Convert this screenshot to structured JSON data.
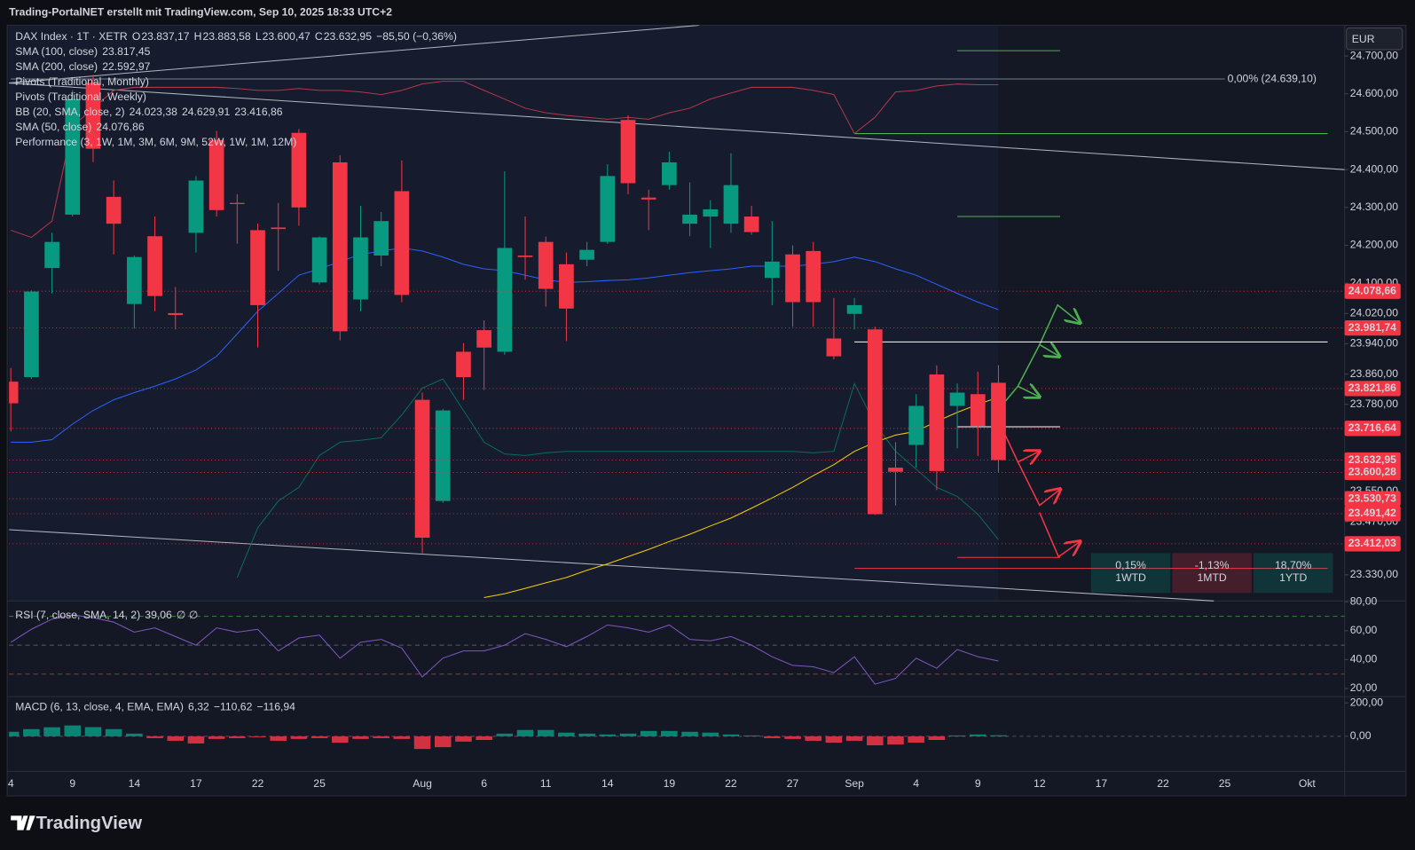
{
  "chart_data": {
    "type": "candlestick",
    "header": "Trading-PortalNET erstellt mit TradingView.com, Sep 10, 2025 18:33 UTC+2",
    "symbol": "DAX Index · 1T · XETR",
    "ohlc_legend": [
      [
        "O",
        "23.837,17"
      ],
      [
        "H",
        "23.883,58"
      ],
      [
        "L",
        "23.600,47"
      ],
      [
        "C",
        "23.632,95"
      ]
    ],
    "change": "−85,50 (−0,36%)",
    "studies": [
      {
        "name": "SMA (100, close)",
        "values": [
          "23.817,45"
        ],
        "colors": [
          "#f5d000"
        ]
      },
      {
        "name": "SMA (200, close)",
        "values": [
          "22.592,97"
        ],
        "colors": [
          "#f5d000"
        ]
      },
      {
        "name": "Pivots (Traditional, Monthly)",
        "values": [],
        "colors": []
      },
      {
        "name": "Pivots (Traditional, Weekly)",
        "values": [],
        "colors": []
      },
      {
        "name": "BB (20, SMA, close, 2)",
        "values": [
          "24.023,38",
          "24.629,91",
          "23.416,86"
        ],
        "colors": [
          "#2962ff",
          "#f23645",
          "#089981"
        ]
      },
      {
        "name": "SMA (50, close)",
        "values": [
          "24.076,86"
        ],
        "colors": [
          "#f5d000"
        ]
      },
      {
        "name": "Performance (3, 1W, 1M, 3M, 6M, 9M, 52W, 1W, 1M, 12M)",
        "values": [],
        "colors": []
      }
    ],
    "currency": "EUR",
    "brand": "TradingView",
    "up_color": "#089981",
    "down_color": "#f23645",
    "categories": [
      "4",
      null,
      null,
      "9",
      null,
      null,
      "14",
      null,
      null,
      "17",
      null,
      null,
      "22",
      null,
      null,
      "25",
      null,
      null,
      null,
      null,
      "Aug",
      null,
      null,
      "6",
      null,
      null,
      "11",
      null,
      null,
      "14",
      null,
      null,
      "19",
      null,
      null,
      "22",
      null,
      null,
      "27",
      null,
      null,
      "Sep",
      null,
      null,
      "4",
      null,
      null,
      "9",
      null,
      null,
      "12",
      null,
      null,
      "17",
      null,
      null,
      "22",
      null,
      null,
      "25",
      null,
      null,
      null,
      "Okt",
      null
    ],
    "open": [
      23840,
      23852,
      24140,
      24281,
      24629,
      24328,
      24045,
      24224,
      24021,
      24233,
      24478,
      24312,
      24240,
      24247,
      24497,
      24102,
      24419,
      24057,
      24173,
      24343,
      23792,
      23525,
      23919,
      23976,
      23919,
      24173,
      24209,
      24150,
      24162,
      24209,
      24531,
      24326,
      24359,
      24257,
      24276,
      24257,
      24276,
      24114,
      24176,
      24185,
      23954,
      24019,
      23978,
      23613,
      23673,
      23859,
      23776,
      23807,
      23837.17,
      null,
      null,
      null,
      null,
      null,
      null,
      null,
      null,
      null,
      null,
      null,
      null,
      null,
      null,
      null,
      null
    ],
    "high": [
      23876,
      24081,
      24233,
      24610,
      24650,
      24371,
      24173,
      24276,
      24090,
      24383,
      24502,
      24335,
      24257,
      24312,
      24507,
      24223,
      24438,
      24304,
      24288,
      24424,
      23811,
      23768,
      23942,
      24002,
      24395,
      24276,
      24223,
      24181,
      24209,
      24414,
      24543,
      24347,
      24447,
      24366,
      24319,
      24443,
      24304,
      24264,
      24200,
      24209,
      24061,
      24061,
      23985,
      23680,
      23807,
      23883,
      23835,
      23866,
      23883.58,
      null,
      null,
      null,
      null,
      null,
      null,
      null,
      null,
      null,
      null,
      null,
      null,
      null,
      null,
      null,
      null
    ],
    "low": [
      23709,
      23847,
      24073,
      24276,
      24420,
      24176,
      23980,
      24026,
      23978,
      24181,
      24276,
      24204,
      23930,
      24133,
      24252,
      24097,
      23949,
      24026,
      24145,
      24050,
      23387,
      23520,
      23792,
      23818,
      23911,
      24109,
      24038,
      23947,
      24145,
      24204,
      24335,
      24240,
      24347,
      24224,
      24193,
      24233,
      24228,
      24042,
      23985,
      23985,
      23899,
      23978,
      23488,
      23513,
      23613,
      23554,
      23664,
      23644,
      23600.47,
      null,
      null,
      null,
      null,
      null,
      null,
      null,
      null,
      null,
      null,
      null,
      null,
      null,
      null,
      null,
      null
    ],
    "close": [
      23783,
      24078,
      24209,
      24586,
      24455,
      24257,
      24169,
      24066,
      24016,
      24371,
      24293,
      24309,
      24042,
      24243,
      24300,
      24221,
      23973,
      24221,
      24264,
      24069,
      23428,
      23764,
      23852,
      23930,
      24193,
      24169,
      24085,
      24033,
      24188,
      24383,
      24364,
      24321,
      24419,
      24281,
      24295,
      24359,
      24235,
      24157,
      24050,
      24050,
      23907,
      24042,
      23490,
      23602,
      23776,
      23604,
      23811,
      23723,
      23632.95,
      null,
      null,
      null,
      null,
      null,
      null,
      null,
      null,
      null,
      null,
      null,
      null,
      null,
      null,
      null,
      null
    ],
    "series": [
      {
        "name": "BB upper",
        "color": "#b2374a",
        "values": [
          24240,
          24221,
          24264,
          24514,
          24562,
          24609,
          24617,
          24617,
          24617,
          24617,
          24617,
          24614,
          24609,
          24609,
          24614,
          24609,
          24609,
          24605,
          24598,
          24609,
          24626,
          24633,
          24633,
          24609,
          24586,
          24562,
          24550,
          24543,
          24538,
          24533,
          24538,
          24533,
          24550,
          24562,
          24586,
          24602,
          24617,
          24617,
          24617,
          24609,
          24598,
          24495,
          24538,
          24605,
          24609,
          24621,
          24626,
          24624,
          24624,
          null,
          null,
          null,
          null,
          null,
          null,
          null,
          null,
          null,
          null,
          null,
          null,
          null,
          null,
          null,
          null
        ]
      },
      {
        "name": "BB basis",
        "color": "#2962ff",
        "values": [
          23680,
          23680,
          23687,
          23728,
          23764,
          23792,
          23811,
          23828,
          23847,
          23871,
          23907,
          23966,
          24026,
          24073,
          24121,
          24138,
          24157,
          24176,
          24185,
          24193,
          24185,
          24169,
          24150,
          24138,
          24133,
          24121,
          24109,
          24102,
          24104,
          24107,
          24109,
          24114,
          24121,
          24128,
          24133,
          24138,
          24145,
          24145,
          24145,
          24150,
          24157,
          24169,
          24157,
          24138,
          24121,
          24097,
          24073,
          24050,
          24030,
          null,
          null,
          null,
          null,
          null,
          null,
          null,
          null,
          null,
          null,
          null,
          null,
          null,
          null,
          null,
          null
        ]
      },
      {
        "name": "BB lower",
        "color": "#0b6b5a",
        "values": [
          null,
          null,
          null,
          null,
          null,
          null,
          null,
          null,
          null,
          null,
          null,
          23323,
          23454,
          23525,
          23561,
          23645,
          23680,
          23685,
          23692,
          23752,
          23823,
          23847,
          23764,
          23680,
          23649,
          23645,
          23652,
          23656,
          23656,
          23656,
          23656,
          23656,
          23656,
          23656,
          23656,
          23656,
          23656,
          23656,
          23656,
          23652,
          23656,
          23835,
          23728,
          23656,
          23609,
          23561,
          23537,
          23490,
          23423,
          null,
          null,
          null,
          null,
          null,
          null,
          null,
          null,
          null,
          null,
          null,
          null,
          null,
          null,
          null,
          null
        ]
      },
      {
        "name": "SMA",
        "color": "#f5d000",
        "values": [
          null,
          null,
          null,
          null,
          null,
          null,
          null,
          null,
          null,
          null,
          null,
          null,
          null,
          null,
          null,
          null,
          null,
          null,
          null,
          null,
          null,
          null,
          null,
          23270,
          23280,
          23294,
          23309,
          23323,
          23342,
          23359,
          23378,
          23397,
          23418,
          23437,
          23459,
          23480,
          23506,
          23533,
          23561,
          23592,
          23621,
          23656,
          23680,
          23699,
          23709,
          23735,
          23759,
          23780,
          23799,
          null,
          null,
          null,
          null,
          null,
          null,
          null,
          null,
          null,
          null,
          null,
          null,
          null,
          null,
          null,
          null
        ]
      }
    ],
    "ylim": [
      23261,
      24781
    ],
    "yticks": [
      {
        "value": 24700,
        "label": "24.700,00"
      },
      {
        "value": 24600,
        "label": "24.600,00"
      },
      {
        "value": 24500,
        "label": "24.500,00"
      },
      {
        "value": 24400,
        "label": "24.400,00"
      },
      {
        "value": 24300,
        "label": "24.300,00"
      },
      {
        "value": 24200,
        "label": "24.200,00"
      },
      {
        "value": 24100,
        "label": "24.100,00"
      },
      {
        "value": 24020,
        "label": "24.020,00"
      },
      {
        "value": 23940,
        "label": "23.940,00"
      },
      {
        "value": 23860,
        "label": "23.860,00"
      },
      {
        "value": 23780,
        "label": "23.780,00"
      },
      {
        "value": 23550,
        "label": "23.550,00"
      },
      {
        "value": 23470,
        "label": "23.470,00"
      },
      {
        "value": 23330,
        "label": "23.330,00"
      }
    ],
    "price_labels": [
      {
        "value": 24078.66,
        "label": "24.078,66"
      },
      {
        "value": 23981.74,
        "label": "23.981,74"
      },
      {
        "value": 23821.86,
        "label": "23.821,86"
      },
      {
        "value": 23716.64,
        "label": "23.716,64"
      },
      {
        "value": 23632.95,
        "label": "23.632,95"
      },
      {
        "value": 23600.28,
        "label": "23.600,28"
      },
      {
        "value": 23530.73,
        "label": "23.530,73"
      },
      {
        "value": 23491.42,
        "label": "23.491,42"
      },
      {
        "value": 23412.03,
        "label": "23.412,03"
      }
    ],
    "price_label_color": "#f23645",
    "pivot_lines": [
      {
        "value": 24639.1,
        "label": "0,00% (24.639,10)",
        "color": "#787b86",
        "from": 0,
        "to": 59
      },
      {
        "value": 24714,
        "color": "#4caf50",
        "from": 46,
        "to": 51
      },
      {
        "value": 24495,
        "color": "#4caf50",
        "from": 41,
        "to": 64
      },
      {
        "value": 24276,
        "color": "#4caf50",
        "from": 46,
        "to": 51
      },
      {
        "value": 23945,
        "color": "#ffffff",
        "from": 41,
        "to": 64
      },
      {
        "value": 23721,
        "color": "#ffffff",
        "from": 46,
        "to": 51
      },
      {
        "value": 23376,
        "color": "#f23645",
        "from": 46,
        "to": 51
      },
      {
        "value": 23347,
        "color": "#f23645",
        "from": 41,
        "to": 64
      }
    ],
    "performance": [
      {
        "value": "0,15%",
        "period": "1WTD",
        "color": "#089981"
      },
      {
        "value": "-1,13%",
        "period": "1MTD",
        "color": "#f23645"
      },
      {
        "value": "18,70%",
        "period": "1YTD",
        "color": "#089981"
      }
    ],
    "rsi": {
      "legend": "RSI (7, close, SMA, 14, 2)",
      "value_label": "39,06",
      "extra": "∅ ∅",
      "color": "#7e57c2",
      "values": [
        52,
        61,
        68,
        71,
        69,
        66,
        59,
        62,
        56,
        50,
        62,
        59,
        61,
        46,
        55,
        57,
        41,
        52,
        54,
        48,
        28,
        41,
        46,
        46,
        50,
        58,
        54,
        49,
        56,
        64,
        62,
        59,
        64,
        54,
        53,
        56,
        50,
        42,
        36,
        35,
        31,
        42,
        23,
        27,
        41,
        34,
        47,
        42,
        39.06,
        null,
        null,
        null,
        null,
        null,
        null,
        null,
        null,
        null,
        null,
        null,
        null,
        null,
        null,
        null,
        null
      ],
      "ylim": [
        14.4,
        80
      ],
      "yticks": [
        {
          "value": 80,
          "label": "80,00"
        },
        {
          "value": 60,
          "label": "60,00"
        },
        {
          "value": 40,
          "label": "40,00"
        },
        {
          "value": 20,
          "label": "20,00"
        }
      ],
      "levels": [
        {
          "value": 70,
          "color": "#4caf50"
        },
        {
          "value": 50,
          "color": "#787b86"
        },
        {
          "value": 30,
          "color": "#f23645"
        }
      ]
    },
    "macd": {
      "legend": "MACD (6, 13, close, 4, EMA, EMA)",
      "value_labels": [
        "6,32",
        "−110,62",
        "−116,94"
      ],
      "label_colors": [
        "#d1d4dc",
        "#2962ff",
        "#ff6d00"
      ],
      "histogram": [
        27,
        43,
        54,
        65,
        55,
        43,
        16,
        -11,
        -27,
        -43,
        -16,
        -11,
        -5,
        -27,
        -16,
        -11,
        -38,
        -16,
        -11,
        -16,
        -76,
        -65,
        -32,
        -22,
        16,
        38,
        38,
        22,
        16,
        11,
        16,
        32,
        32,
        27,
        22,
        11,
        5,
        -11,
        -16,
        -27,
        -38,
        -27,
        -54,
        -49,
        -38,
        -22,
        5,
        11,
        6.32,
        null,
        null,
        null,
        null,
        null,
        null,
        null,
        null,
        null,
        null,
        null,
        null,
        null,
        null,
        null,
        null
      ],
      "ylim": [
        -210.8,
        237.8
      ],
      "yticks": [
        {
          "value": 200,
          "label": "200,00"
        },
        {
          "value": 0,
          "label": "0,00"
        }
      ]
    }
  }
}
